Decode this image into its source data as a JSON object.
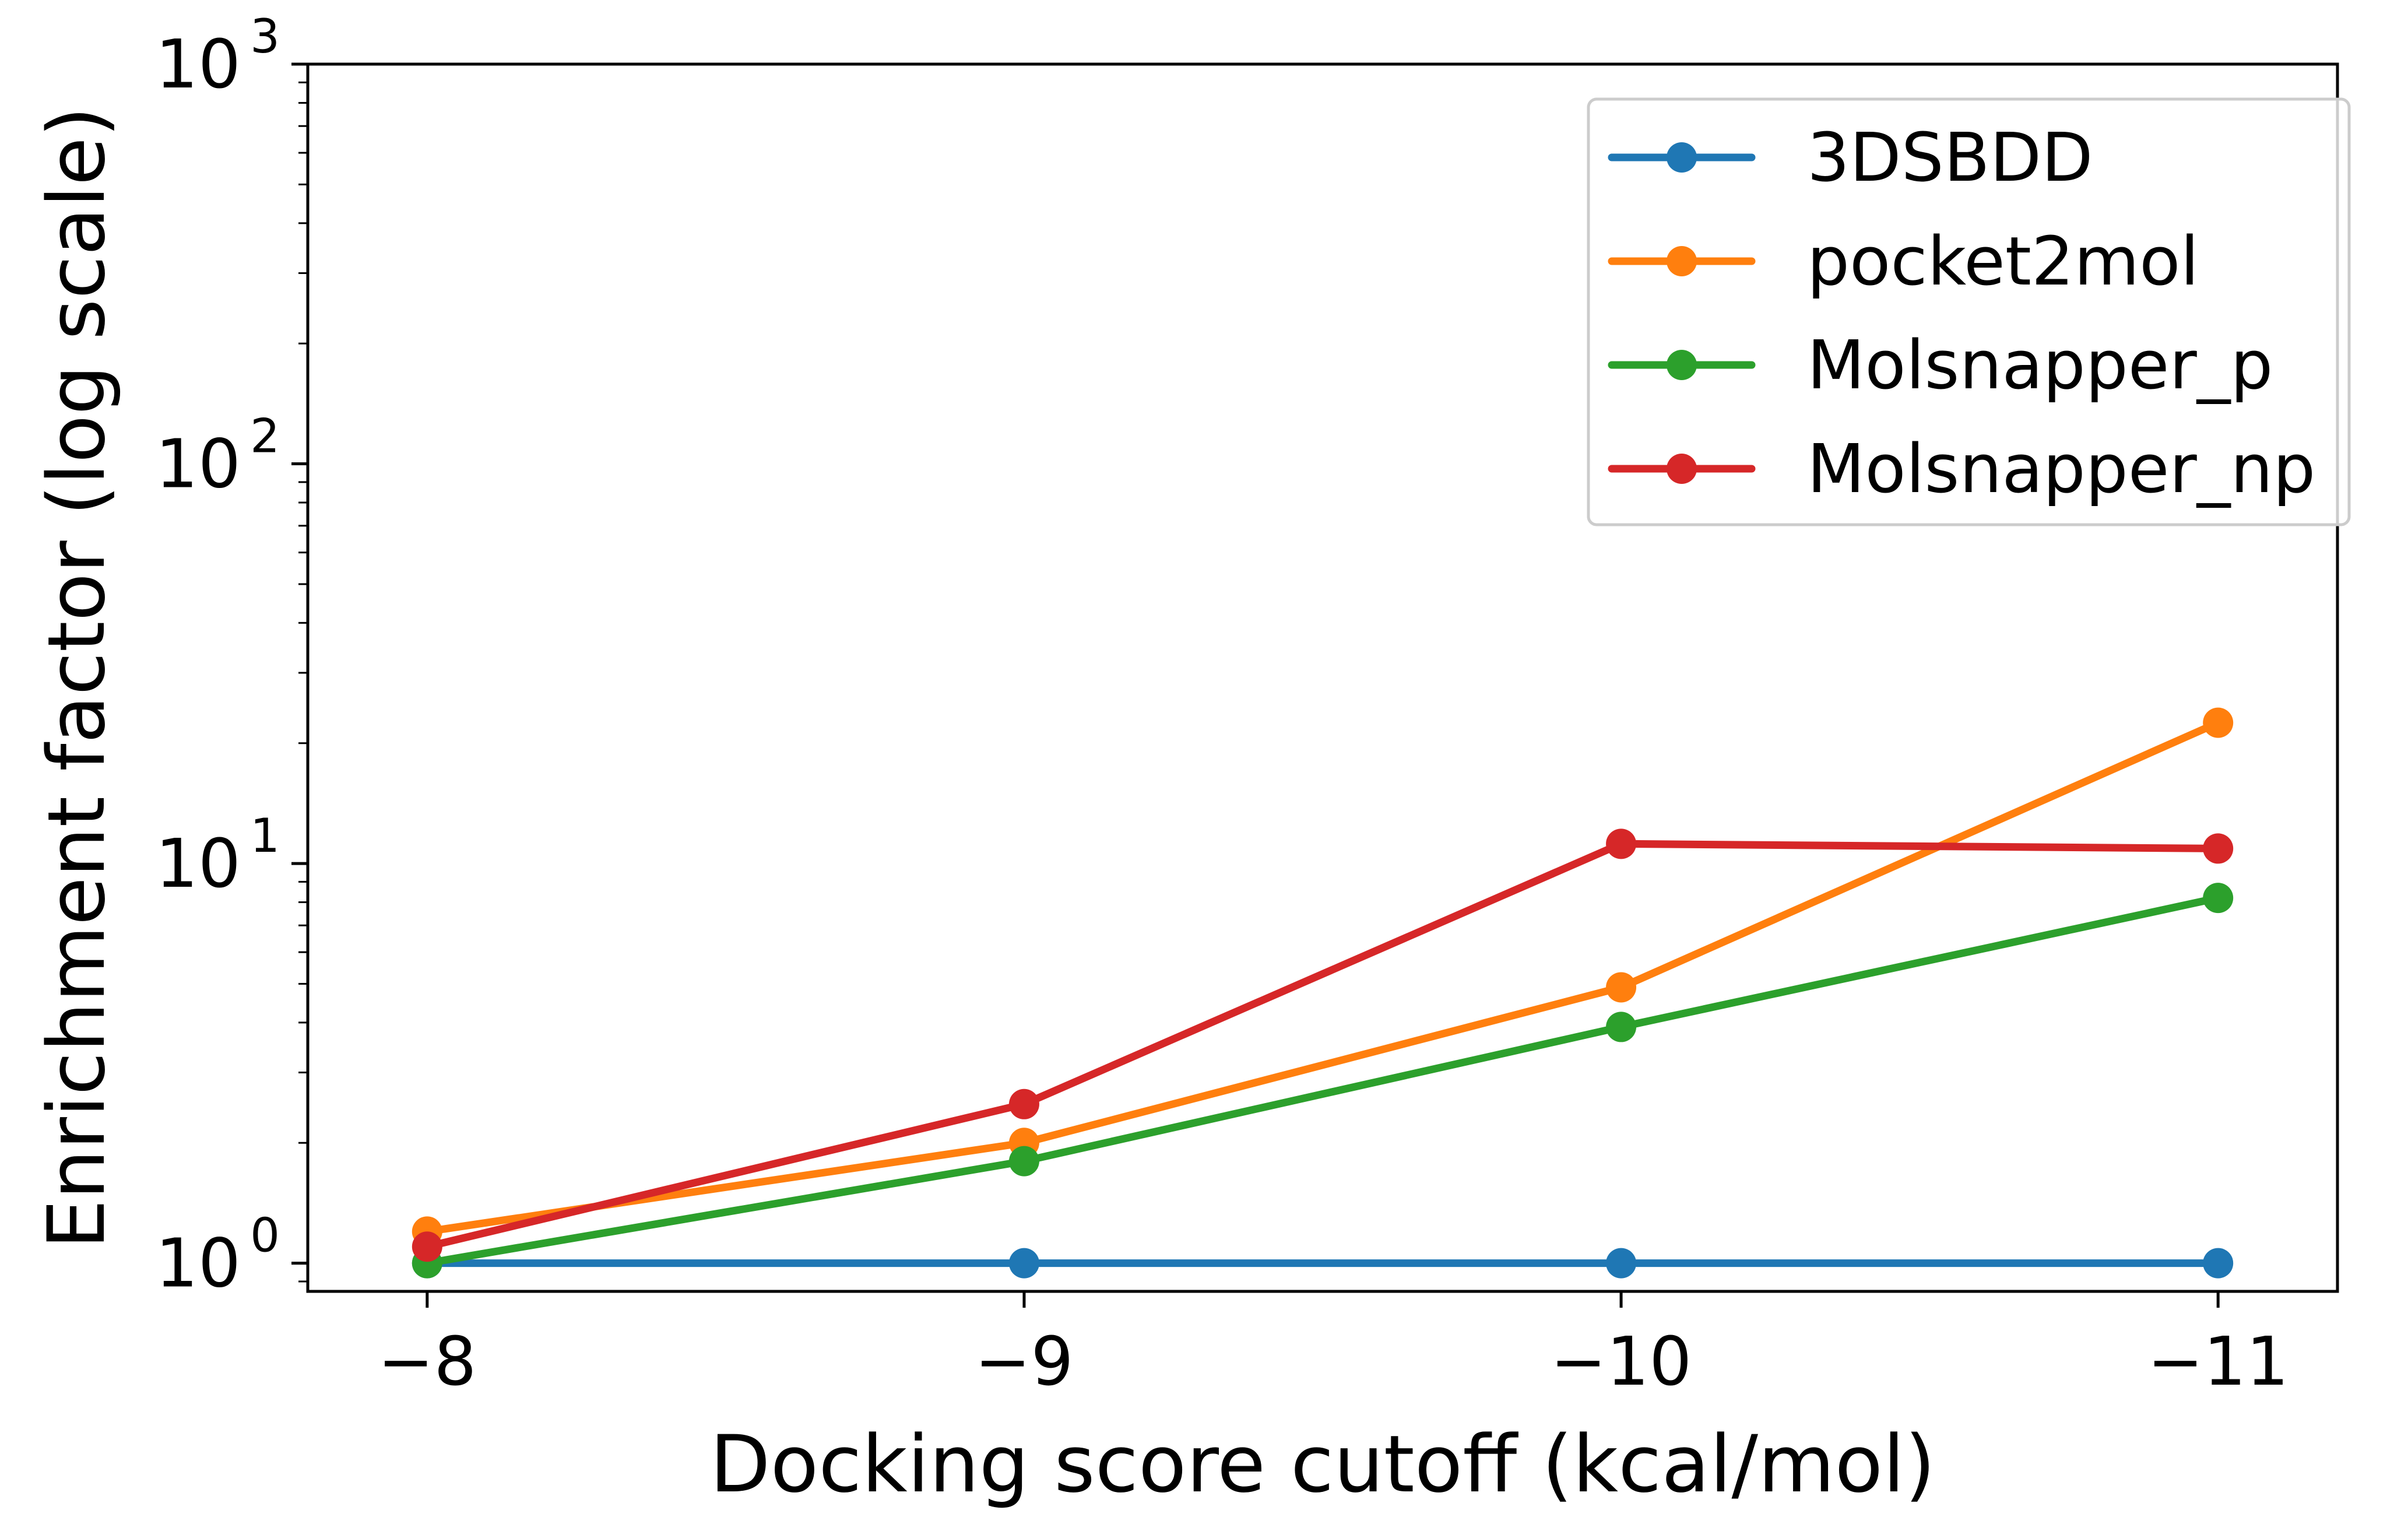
{
  "chart_data": {
    "type": "line",
    "x": [
      -8,
      -9,
      -10,
      -11
    ],
    "x_tick_labels": [
      "−8",
      "−9",
      "−10",
      "−11"
    ],
    "xlabel": "Docking score cutoff (kcal/mol)",
    "ylabel": "Enrichment factor (log scale)",
    "yscale": "log",
    "ylim": [
      0.85,
      1000
    ],
    "y_ticks": [
      {
        "value": 1,
        "base": "10",
        "exp": "0"
      },
      {
        "value": 10,
        "base": "10",
        "exp": "1"
      },
      {
        "value": 100,
        "base": "10",
        "exp": "2"
      },
      {
        "value": 1000,
        "base": "10",
        "exp": "3"
      }
    ],
    "grid": false,
    "legend_position": "top-right",
    "series": [
      {
        "name": "3DSBDD",
        "color": "#1f77b4",
        "values": [
          1.0,
          1.0,
          1.0,
          1.0
        ]
      },
      {
        "name": "pocket2mol",
        "color": "#ff7f0e",
        "values": [
          1.2,
          2.0,
          4.9,
          22.5
        ]
      },
      {
        "name": "Molsnapper_p",
        "color": "#2ca02c",
        "values": [
          1.0,
          1.8,
          3.9,
          8.2
        ]
      },
      {
        "name": "Molsnapper_np",
        "color": "#d62728",
        "values": [
          1.1,
          2.5,
          11.2,
          10.9
        ]
      }
    ]
  }
}
